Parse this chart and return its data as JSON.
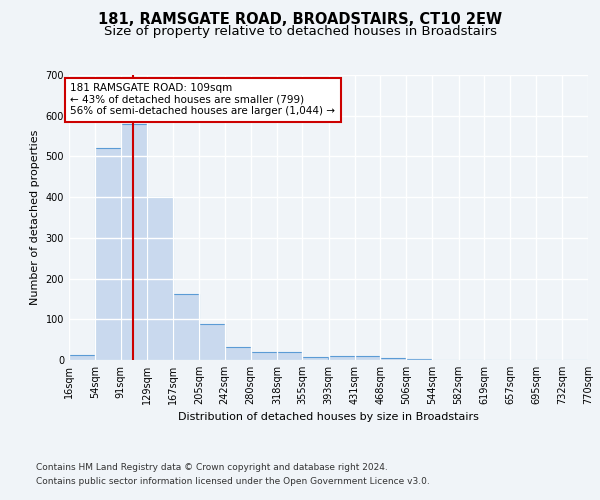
{
  "title": "181, RAMSGATE ROAD, BROADSTAIRS, CT10 2EW",
  "subtitle": "Size of property relative to detached houses in Broadstairs",
  "xlabel": "Distribution of detached houses by size in Broadstairs",
  "ylabel": "Number of detached properties",
  "bin_edges": [
    16,
    54,
    91,
    129,
    167,
    205,
    242,
    280,
    318,
    355,
    393,
    431,
    468,
    506,
    544,
    582,
    619,
    657,
    695,
    732,
    770
  ],
  "bar_heights": [
    13,
    521,
    580,
    400,
    163,
    88,
    31,
    20,
    20,
    7,
    11,
    11,
    5,
    2,
    1,
    1,
    0,
    0,
    0,
    0
  ],
  "bar_color": "#c9d9ee",
  "bar_edge_color": "#5b9bd5",
  "vline_x": 109,
  "vline_color": "#cc0000",
  "annotation_text": "181 RAMSGATE ROAD: 109sqm\n← 43% of detached houses are smaller (799)\n56% of semi-detached houses are larger (1,044) →",
  "annotation_box_facecolor": "#ffffff",
  "annotation_box_edgecolor": "#cc0000",
  "ylim": [
    0,
    700
  ],
  "yticks": [
    0,
    100,
    200,
    300,
    400,
    500,
    600,
    700
  ],
  "tick_labels": [
    "16sqm",
    "54sqm",
    "91sqm",
    "129sqm",
    "167sqm",
    "205sqm",
    "242sqm",
    "280sqm",
    "318sqm",
    "355sqm",
    "393sqm",
    "431sqm",
    "468sqm",
    "506sqm",
    "544sqm",
    "582sqm",
    "619sqm",
    "657sqm",
    "695sqm",
    "732sqm",
    "770sqm"
  ],
  "footer_line1": "Contains HM Land Registry data © Crown copyright and database right 2024.",
  "footer_line2": "Contains public sector information licensed under the Open Government Licence v3.0.",
  "bg_color": "#f0f4f8",
  "grid_color": "#d8e4f0",
  "title_fontsize": 10.5,
  "subtitle_fontsize": 9.5,
  "axis_label_fontsize": 8,
  "tick_fontsize": 7,
  "footer_fontsize": 6.5
}
